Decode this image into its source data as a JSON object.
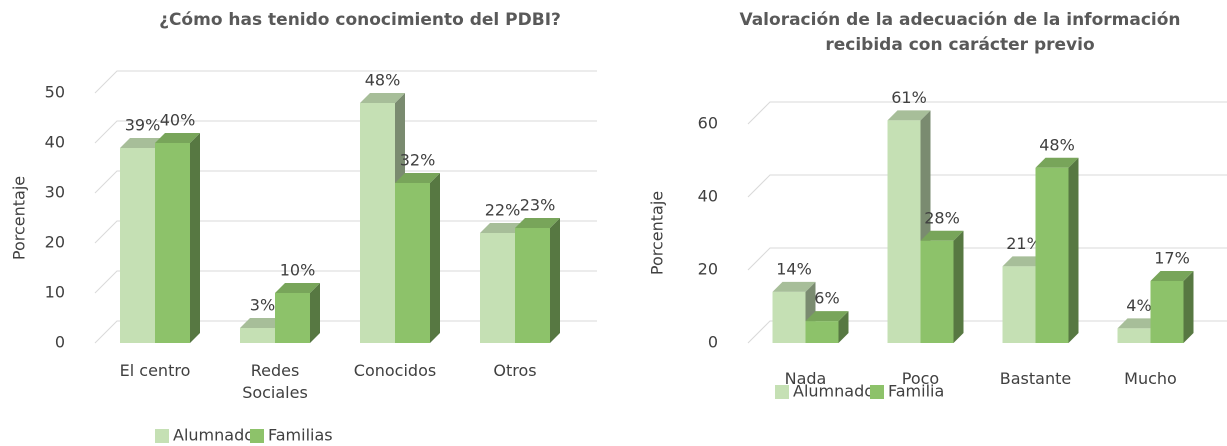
{
  "chart_data": [
    {
      "type": "bar",
      "title": "¿Cómo has tenido conocimiento del PDBI?",
      "ylabel": "Porcentaje",
      "categories": [
        "El centro",
        "Redes Sociales",
        "Conocidos",
        "Otros"
      ],
      "series": [
        {
          "name": "Alumnado",
          "color": "#c5e0b4",
          "values": [
            39,
            3,
            48,
            22
          ],
          "value_labels": [
            "39%",
            "3%",
            "48%",
            "22%"
          ]
        },
        {
          "name": "Familias",
          "color": "#8dc26a",
          "values": [
            40,
            10,
            32,
            23
          ],
          "value_labels": [
            "40%",
            "10%",
            "32%",
            "23%"
          ]
        }
      ],
      "ylim": [
        0,
        50
      ],
      "yticks": [
        0,
        10,
        20,
        30,
        40,
        50
      ],
      "grid": true,
      "legend": "bottom"
    },
    {
      "type": "bar",
      "title": "Valoración de la adecuación de la información recibida con carácter previo",
      "ylabel": "Porcentaje",
      "categories": [
        "Nada",
        "Poco",
        "Bastante",
        "Mucho"
      ],
      "series": [
        {
          "name": "Alumnado",
          "color": "#c5e0b4",
          "values": [
            14,
            61,
            21,
            4
          ],
          "value_labels": [
            "14%",
            "61%",
            "21%",
            "4%"
          ]
        },
        {
          "name": "Familia",
          "color": "#8dc26a",
          "values": [
            6,
            28,
            48,
            17
          ],
          "value_labels": [
            "6%",
            "28%",
            "48%",
            "17%"
          ]
        }
      ],
      "ylim": [
        0,
        60
      ],
      "yticks": [
        0,
        20,
        40,
        60
      ],
      "grid": true,
      "legend": "bottom"
    }
  ]
}
